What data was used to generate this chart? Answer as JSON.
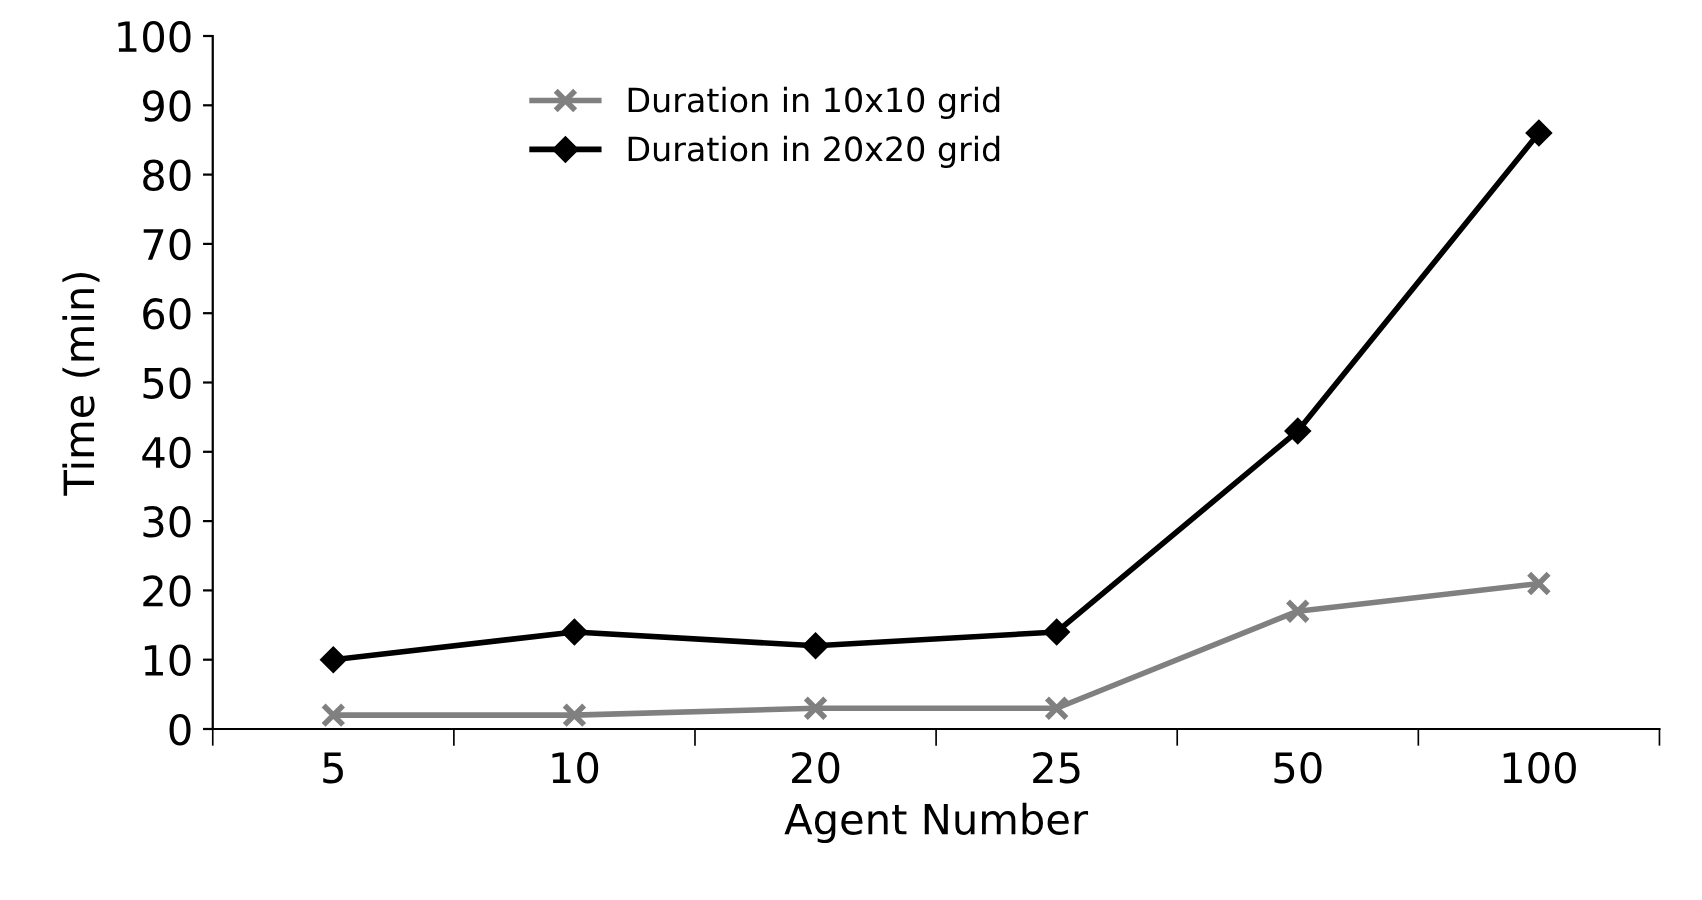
{
  "chart_data": {
    "type": "line",
    "xlabel": "Agent Number",
    "ylabel": "Time (min)",
    "categories": [
      "5",
      "10",
      "20",
      "25",
      "50",
      "100"
    ],
    "series": [
      {
        "name": "Duration in 10x10 grid",
        "color": "#808080",
        "marker": "cross",
        "values": [
          2,
          2,
          3,
          3,
          17,
          21
        ]
      },
      {
        "name": "Duration in 20x20 grid",
        "color": "#000000",
        "marker": "diamond",
        "values": [
          10,
          14,
          12,
          14,
          43,
          86
        ]
      }
    ],
    "ylim": [
      0,
      100
    ],
    "yticks": [
      0,
      10,
      20,
      30,
      40,
      50,
      60,
      70,
      80,
      90,
      100
    ],
    "grid": false,
    "legend": "top left",
    "line_style": "solid"
  }
}
